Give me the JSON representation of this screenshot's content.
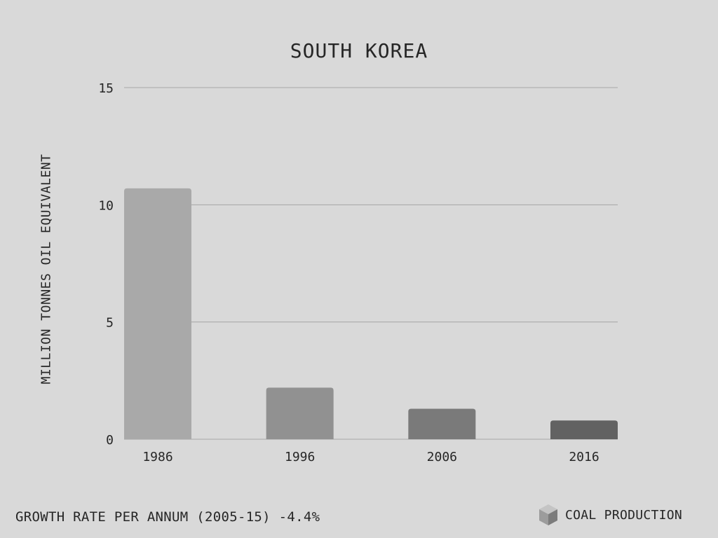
{
  "chart_data": {
    "type": "bar",
    "title": "SOUTH KOREA",
    "ylabel": "MILLION TONNES OIL EQUIVALENT",
    "xlabel": "",
    "categories": [
      "1986",
      "1996",
      "2006",
      "2016"
    ],
    "values": [
      10.7,
      2.2,
      1.3,
      0.8
    ],
    "ylim": [
      0,
      15
    ],
    "yticks": [
      "0",
      "5",
      "10",
      "15"
    ],
    "grid": true,
    "bar_colors": [
      "#a9a9a9",
      "#919191",
      "#7a7a7a",
      "#626262"
    ]
  },
  "footer": {
    "growth_text": "GROWTH RATE PER ANNUM (2005-15) -4.4%",
    "legend_label": "COAL PRODUCTION",
    "legend_icon": "cube-icon"
  },
  "colors": {
    "background": "#d9d9d9",
    "gridline": "#a6a6a6",
    "text": "#262626"
  }
}
